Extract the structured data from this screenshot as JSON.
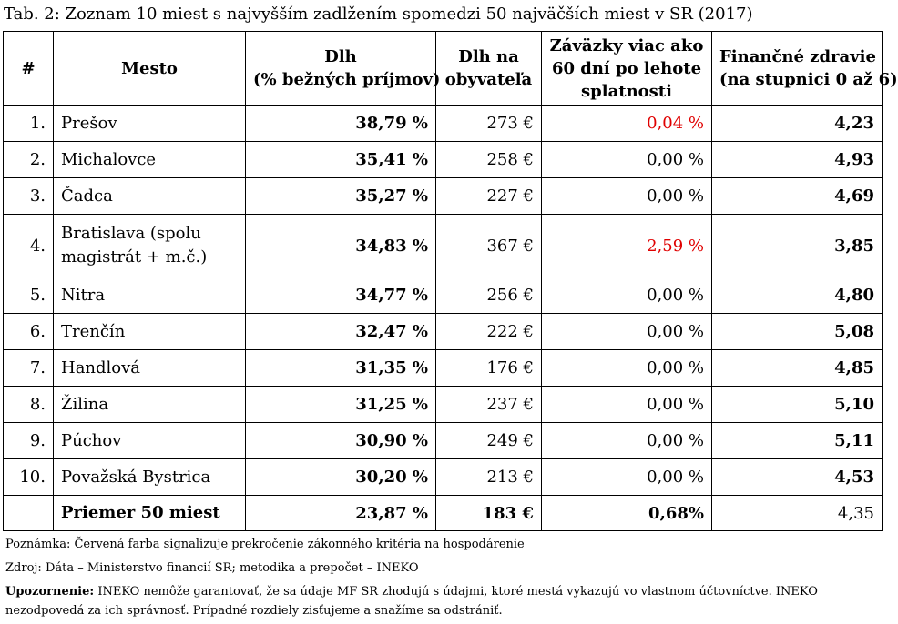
{
  "title": "Tab. 2: Zoznam 10 miest s najvyšším zadlžením spomedzi 50 najväčších miest v SR (2017)",
  "headers": {
    "rank": "#",
    "city": "Mesto",
    "debt_line1": "Dlh",
    "debt_line2": "(% bežných príjmov)",
    "per_capita_line1": "Dlh na",
    "per_capita_line2": "obyvateľa",
    "liab_line1": "Záväzky viac ako",
    "liab_line2": "60 dní po lehote",
    "liab_line3": "splatnosti",
    "fin_line1": "Finančné zdravie",
    "fin_line2": "(na stupnici 0 až 6)"
  },
  "rows": [
    {
      "rank": "1.",
      "city": "Prešov",
      "debt": "38,79 %",
      "per_capita": "273 €",
      "liabilities": "0,04 %",
      "health": "4,23"
    },
    {
      "rank": "2.",
      "city": "Michalovce",
      "debt": "35,41 %",
      "per_capita": "258 €",
      "liabilities": "0,00 %",
      "health": "4,93"
    },
    {
      "rank": "3.",
      "city": "Čadca",
      "debt": "35,27 %",
      "per_capita": "227 €",
      "liabilities": "0,00 %",
      "health": "4,69"
    },
    {
      "rank": "4.",
      "city": "Bratislava (spolu magistrát + m.č.)",
      "debt": "34,83 %",
      "per_capita": "367 €",
      "liabilities": "2,59 %",
      "health": "3,85"
    },
    {
      "rank": "5.",
      "city": "Nitra",
      "debt": "34,77 %",
      "per_capita": "256 €",
      "liabilities": "0,00 %",
      "health": "4,80"
    },
    {
      "rank": "6.",
      "city": "Trenčín",
      "debt": "32,47 %",
      "per_capita": "222 €",
      "liabilities": "0,00 %",
      "health": "5,08"
    },
    {
      "rank": "7.",
      "city": "Handlová",
      "debt": "31,35 %",
      "per_capita": "176 €",
      "liabilities": "0,00 %",
      "health": "4,85"
    },
    {
      "rank": "8.",
      "city": "Žilina",
      "debt": "31,25 %",
      "per_capita": "237 €",
      "liabilities": "0,00 %",
      "health": "5,10"
    },
    {
      "rank": "9.",
      "city": "Púchov",
      "debt": "30,90 %",
      "per_capita": "249 €",
      "liabilities": "0,00 %",
      "health": "5,11"
    },
    {
      "rank": "10.",
      "city": "Považská Bystrica",
      "debt": "30,20 %",
      "per_capita": "213 €",
      "liabilities": "0,00 %",
      "health": "4,53"
    }
  ],
  "average": {
    "label": "Priemer 50 miest",
    "debt": "23,87 %",
    "per_capita": "183 €",
    "liabilities": "0,68%",
    "health": "4,35"
  },
  "notes": {
    "note": "Poznámka: Červená farba signalizuje prekročenie zákonného kritéria na hospodárenie",
    "source": "Zdroj: Dáta – Ministerstvo financií SR; metodika a prepočet – INEKO",
    "warning_label": "Upozornenie:",
    "warning_text": " INEKO nemôže garantovať, že sa údaje MF SR zhodujú s údajmi, ktoré mestá vykazujú vo vlastnom účtovníctve. INEKO nezodpovedá za ich správnosť. Prípadné rozdiely zisťujeme a snažíme sa odstrániť."
  },
  "colors": {
    "highlight_red": "#e00000"
  }
}
